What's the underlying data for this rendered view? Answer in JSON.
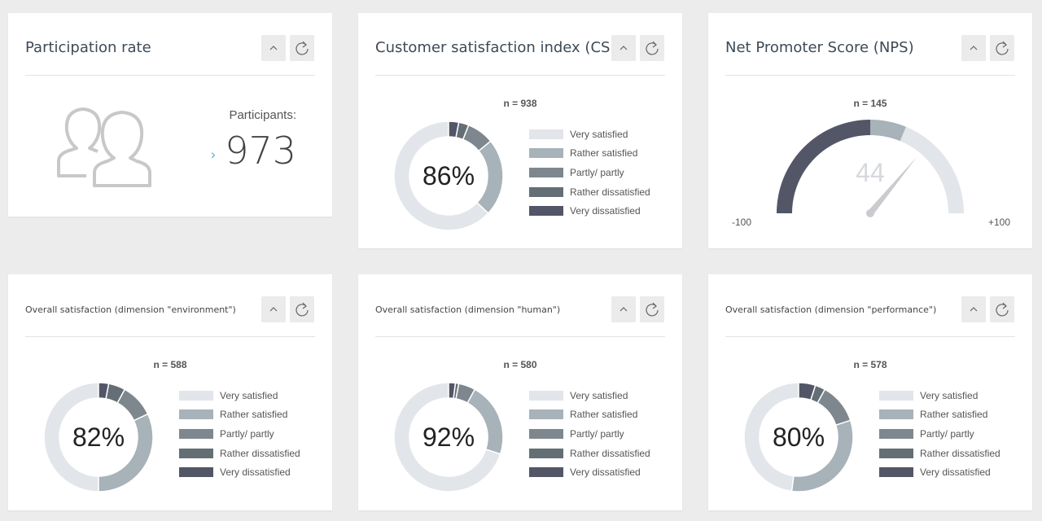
{
  "colors": {
    "very_satisfied": "#e2e5e9",
    "rather_satisfied": "#a7b2b9",
    "partly": "#7e878e",
    "rather_dissatisfied": "#646e75",
    "very_dissatisfied": "#525666",
    "background": "#ececec"
  },
  "legend": [
    "Very satisfied",
    "Rather satisfied",
    "Partly/ partly",
    "Rather dissatisfied",
    "Very dissatisfied"
  ],
  "participation": {
    "title": "Participation rate",
    "participants_label": "Participants:",
    "participants_value": "973",
    "icon": "users-icon"
  },
  "csi": {
    "title": "Customer satisfaction index (CSI)",
    "n": "n = 938",
    "center_label": "86%"
  },
  "nps": {
    "title": "Net Promoter Score (NPS)",
    "n": "n = 145",
    "value": "44",
    "min_label": "-100",
    "max_label": "+100"
  },
  "env": {
    "title": "Overall satisfaction (dimension \"environment\")",
    "n": "n = 588",
    "center_label": "82%"
  },
  "human": {
    "title": "Overall satisfaction (dimension \"human\")",
    "n": "n = 580",
    "center_label": "92%"
  },
  "perf": {
    "title": "Overall satisfaction (dimension \"performance\")",
    "n": "n = 578",
    "center_label": "80%"
  },
  "chart_data": [
    {
      "type": "pie",
      "categories": [
        "Very satisfied",
        "Rather satisfied",
        "Partly/ partly",
        "Rather dissatisfied",
        "Very dissatisfied"
      ],
      "values": [
        0.63,
        0.23,
        0.08,
        0.03,
        0.03
      ],
      "label": "86%"
    },
    {
      "type": "pie",
      "categories": [
        "Very satisfied",
        "Rather satisfied",
        "Partly/ partly",
        "Rather dissatisfied",
        "Very dissatisfied"
      ],
      "values": [
        0.5,
        0.32,
        0.1,
        0.05,
        0.03
      ],
      "label": "82%"
    },
    {
      "type": "pie",
      "categories": [
        "Very satisfied",
        "Rather satisfied",
        "Partly/ partly",
        "Rather dissatisfied",
        "Very dissatisfied"
      ],
      "values": [
        0.7,
        0.22,
        0.05,
        0.01,
        0.02
      ],
      "label": "92%"
    },
    {
      "type": "pie",
      "categories": [
        "Very satisfied",
        "Rather satisfied",
        "Partly/ partly",
        "Rather dissatisfied",
        "Very dissatisfied"
      ],
      "values": [
        0.48,
        0.32,
        0.12,
        0.03,
        0.05
      ],
      "label": "80%"
    },
    {
      "type": "gauge",
      "value": 44,
      "range": [
        -100,
        100
      ],
      "bands": [
        {
          "from": -100,
          "to": 0,
          "color": "#525666"
        },
        {
          "from": 0,
          "to": 25,
          "color": "#a7b2b9"
        },
        {
          "from": 25,
          "to": 100,
          "color": "#e2e5e9"
        }
      ]
    }
  ]
}
